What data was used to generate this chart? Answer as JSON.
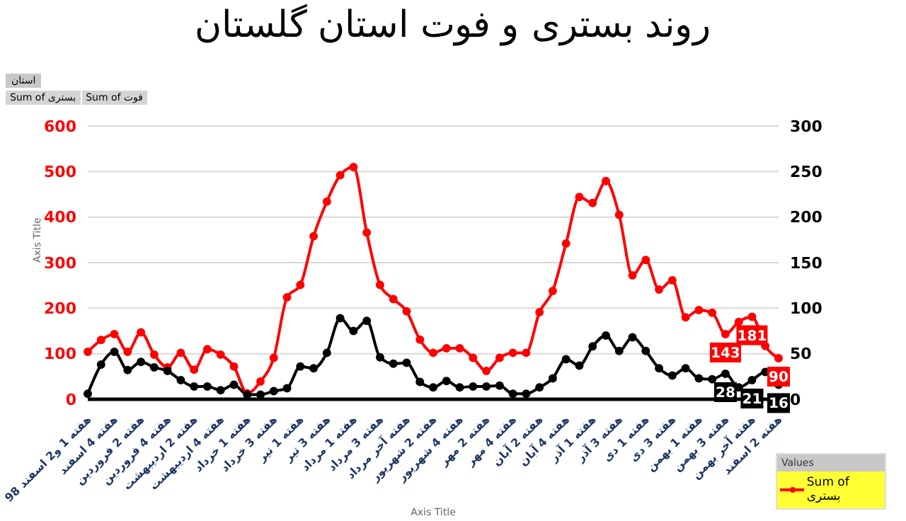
{
  "chart_data": {
    "type": "line",
    "title": "روند بستری و فوت استان گلستان",
    "xlabel": "Axis Title",
    "ylabel": "Axis Title",
    "legend_title": "Values",
    "annotations": [
      "استان",
      "Sum of بستری",
      "Sum of فوت"
    ],
    "categories": [
      "هفته 1 و2 اسفند 98",
      null,
      "هفته 4 اسفند",
      null,
      "هفته 2 فروردین",
      null,
      "هفته 4 فروردین",
      null,
      "هفته 2 اردیبهشت",
      null,
      "هفته 4 اردیبهشت",
      null,
      "هفته 1 خرداد",
      null,
      "هفته 3 خرداد",
      null,
      "هفته 1 تیر",
      null,
      "هفته 3 تیر",
      null,
      "هفته 1 مرداد",
      null,
      "هفته 3 مرداد",
      null,
      "هفته آخر مرداد",
      null,
      "هفته 2 شهریور",
      null,
      "هفته 4 شهریور",
      null,
      "هفته 2 مهر",
      null,
      "هفته 4 مهر",
      null,
      "هفته 2 آبان",
      null,
      "هفته 4 آبان",
      null,
      "هفته 1 آذر",
      null,
      "هفته 3 آذر",
      null,
      "هفته 1 دی",
      null,
      "هفته 3 دی",
      null,
      "هفته 1 بهمن",
      null,
      "هفته 3 بهمن",
      null,
      "هفته آخر بهمن",
      null,
      "هفته 2 اسفند"
    ],
    "series": [
      {
        "name": "Sum of بستری",
        "color": "#ff0000",
        "values": [
          104,
          130,
          143,
          104,
          147,
          98,
          70,
          102,
          65,
          110,
          98,
          72,
          13,
          39,
          91,
          224,
          251,
          358,
          434,
          492,
          510,
          366,
          251,
          220,
          193,
          131,
          102,
          112,
          112,
          91,
          62,
          91,
          102,
          102,
          191,
          238,
          342,
          444,
          431,
          479,
          405,
          272,
          306,
          241,
          261,
          180,
          196,
          190,
          143,
          170,
          181,
          117,
          90
        ],
        "value_labels": [
          null,
          null,
          null,
          null,
          null,
          null,
          null,
          null,
          null,
          null,
          null,
          null,
          null,
          null,
          null,
          null,
          null,
          null,
          null,
          null,
          null,
          null,
          null,
          null,
          null,
          null,
          null,
          null,
          null,
          null,
          null,
          null,
          null,
          null,
          null,
          null,
          null,
          null,
          null,
          null,
          null,
          null,
          null,
          null,
          null,
          null,
          null,
          null,
          "143",
          null,
          "181",
          null,
          "90"
        ]
      },
      {
        "color": "#000000",
        "axis": "y2",
        "values": [
          6,
          38,
          52,
          32,
          41,
          35,
          31,
          21,
          14,
          14,
          10,
          16,
          5,
          5,
          9,
          12,
          36,
          34,
          51,
          89,
          75,
          86,
          46,
          39,
          40,
          19,
          13,
          20,
          13,
          14,
          14,
          15,
          6,
          6,
          13,
          23,
          44,
          37,
          58,
          70,
          53,
          68,
          53,
          34,
          26,
          34,
          23,
          22,
          28,
          13,
          21,
          30,
          16
        ],
        "value_labels": [
          null,
          null,
          null,
          null,
          null,
          null,
          null,
          null,
          null,
          null,
          null,
          null,
          null,
          null,
          null,
          null,
          null,
          null,
          null,
          null,
          null,
          null,
          null,
          null,
          null,
          null,
          null,
          null,
          null,
          null,
          null,
          null,
          null,
          null,
          null,
          null,
          null,
          null,
          null,
          null,
          null,
          null,
          null,
          null,
          null,
          null,
          null,
          null,
          "28",
          null,
          "21",
          null,
          "16"
        ]
      }
    ],
    "ylim": [
      0,
      600
    ],
    "yticks": [
      0,
      100,
      200,
      300,
      400,
      500,
      600
    ],
    "y2lim": [
      0,
      300
    ],
    "y2ticks": [
      0,
      50,
      100,
      150,
      200,
      250,
      300
    ],
    "grid": "y",
    "legend": "bottom right",
    "marker": "circle",
    "line_style": "solid"
  }
}
